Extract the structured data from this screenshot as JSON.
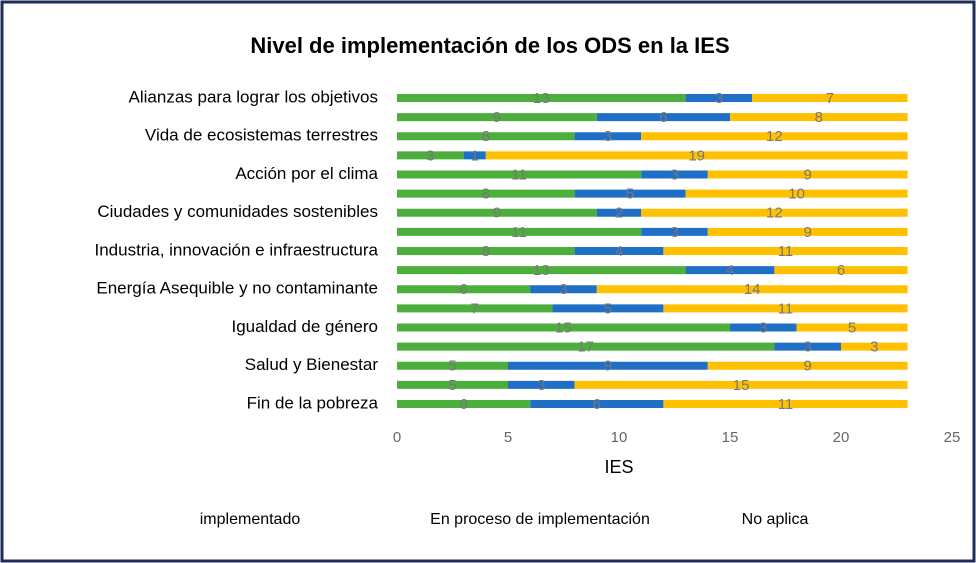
{
  "chart_data": {
    "type": "stacked_barh",
    "title": "Nivel de implementación de los ODS en la IES",
    "x_label": "IES",
    "categories": [
      "Fin de la pobreza",
      null,
      "Salud y Bienestar",
      null,
      "Igualdad de género",
      null,
      "Energía Asequible y no contaminante",
      null,
      "Industria, innovación e infraestructura",
      null,
      "Ciudades y comunidades sostenibles",
      null,
      "Acción por el clima",
      null,
      "Vida de ecosistemas terrestres",
      null,
      "Alianzas para lograr los objetivos"
    ],
    "series": [
      {
        "name": "implementado",
        "color": "#4caf3c",
        "values": [
          6,
          5,
          5,
          17,
          15,
          7,
          6,
          13,
          8,
          11,
          9,
          8,
          11,
          3,
          8,
          9,
          13
        ]
      },
      {
        "name": "En proceso de implementación",
        "color": "#1f6fc6",
        "values": [
          6,
          3,
          9,
          3,
          3,
          5,
          3,
          4,
          4,
          3,
          2,
          5,
          3,
          1,
          3,
          6,
          3
        ]
      },
      {
        "name": "No aplica",
        "color": "#ffc000",
        "values": [
          11,
          15,
          9,
          3,
          5,
          11,
          14,
          6,
          11,
          9,
          12,
          10,
          9,
          19,
          12,
          8,
          7
        ]
      }
    ],
    "xlim": [
      0,
      25
    ],
    "xticks": [
      0,
      5,
      10,
      15,
      20,
      25
    ],
    "grid": false,
    "legend": "bottom"
  }
}
